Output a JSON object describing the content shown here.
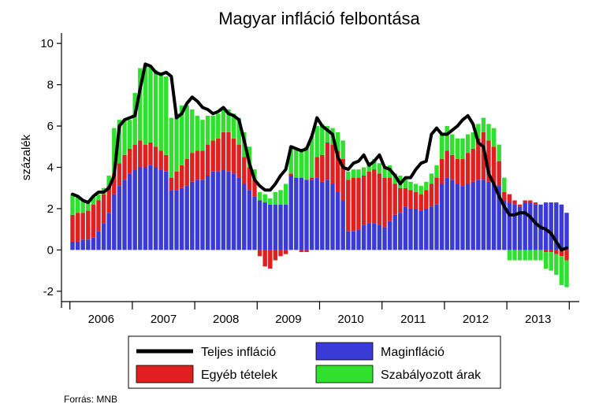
{
  "chart_data": {
    "type": "bar",
    "title": "Magyar infláció felbontása",
    "ylabel": "százalék",
    "ylim": [
      -2.5,
      10.5
    ],
    "yticks": [
      "10",
      "8",
      "6",
      "4",
      "2",
      "0",
      "-2"
    ],
    "years": [
      "2006",
      "2007",
      "2008",
      "2009",
      "2010",
      "2011",
      "2012",
      "2013"
    ],
    "periods_per_year": 12,
    "grid": false,
    "legend_position": "bottom",
    "series": [
      {
        "name": "Maginfláció",
        "color": "#3a3ad6",
        "values": [
          0.4,
          0.4,
          0.5,
          0.5,
          0.6,
          0.9,
          1.3,
          1.8,
          2.7,
          3.1,
          3.4,
          3.7,
          3.9,
          4.0,
          4.0,
          4.1,
          4.0,
          3.9,
          3.8,
          2.9,
          2.9,
          3.0,
          3.1,
          3.3,
          3.4,
          3.4,
          3.6,
          3.8,
          3.8,
          3.9,
          3.8,
          3.7,
          3.5,
          3.2,
          2.9,
          2.6,
          2.4,
          2.3,
          2.2,
          2.2,
          2.2,
          2.2,
          3.6,
          3.5,
          3.5,
          3.4,
          3.4,
          3.5,
          3.3,
          3.4,
          3.2,
          2.8,
          2.4,
          0.9,
          0.9,
          1.0,
          1.2,
          1.3,
          1.3,
          1.2,
          1.1,
          1.4,
          1.7,
          1.8,
          2.1,
          2.0,
          2.0,
          1.9,
          2.0,
          2.1,
          2.2,
          3.2,
          3.5,
          3.4,
          3.2,
          3.1,
          3.2,
          3.3,
          3.4,
          3.4,
          3.3,
          3.2,
          3.1,
          2.4,
          2.3,
          2.2,
          2.1,
          2.3,
          2.3,
          2.2,
          2.2,
          2.3,
          2.3,
          2.3,
          2.2,
          1.8
        ]
      },
      {
        "name": "Egyéb tételek",
        "color": "#e02020",
        "values": [
          1.3,
          1.4,
          1.3,
          1.4,
          1.6,
          1.5,
          1.4,
          1.3,
          1.0,
          1.1,
          1.2,
          1.2,
          1.2,
          1.3,
          1.1,
          1.1,
          1.0,
          0.9,
          0.8,
          0.6,
          0.9,
          1.1,
          1.3,
          1.4,
          1.4,
          1.4,
          1.5,
          1.5,
          1.6,
          1.8,
          1.9,
          1.7,
          1.6,
          1.3,
          1.1,
          0.8,
          -0.3,
          -0.8,
          -0.9,
          -0.5,
          -0.3,
          -0.2,
          0.1,
          0.0,
          -0.1,
          -0.1,
          0.1,
          1.0,
          1.3,
          1.8,
          1.9,
          2.0,
          2.0,
          2.5,
          2.6,
          2.5,
          2.4,
          2.5,
          2.6,
          2.5,
          2.4,
          2.1,
          1.5,
          1.2,
          0.9,
          0.9,
          0.8,
          0.8,
          0.9,
          1.1,
          1.3,
          1.2,
          1.3,
          1.2,
          1.2,
          1.3,
          1.5,
          1.6,
          2.0,
          2.3,
          2.0,
          1.8,
          1.2,
          0.4,
          0.4,
          0.2,
          0.1,
          0.1,
          0.1,
          0.1,
          0.0,
          -0.1,
          -0.1,
          -0.2,
          -0.3,
          -0.5
        ]
      },
      {
        "name": "Szabályozott árak",
        "color": "#2fe02f",
        "values": [
          1.0,
          0.8,
          0.6,
          0.4,
          0.4,
          0.3,
          0.3,
          0.5,
          2.2,
          2.1,
          1.7,
          1.4,
          2.5,
          3.5,
          3.9,
          3.7,
          3.7,
          3.8,
          3.8,
          2.9,
          2.8,
          2.9,
          2.6,
          2.1,
          1.7,
          1.5,
          1.4,
          1.2,
          1.2,
          1.1,
          1.1,
          1.2,
          1.3,
          1.2,
          1.0,
          0.5,
          0.4,
          0.4,
          0.3,
          0.6,
          0.7,
          1.0,
          1.3,
          1.4,
          1.4,
          1.6,
          2.0,
          1.5,
          1.5,
          0.8,
          0.8,
          0.9,
          0.9,
          0.4,
          0.4,
          0.4,
          0.4,
          0.4,
          0.5,
          0.5,
          0.5,
          0.6,
          0.5,
          0.6,
          0.5,
          0.4,
          0.4,
          0.4,
          0.4,
          0.5,
          0.6,
          1.2,
          1.2,
          1.0,
          1.0,
          1.0,
          0.9,
          0.8,
          0.7,
          0.7,
          0.8,
          0.9,
          0.8,
          0.7,
          -0.5,
          -0.5,
          -0.5,
          -0.5,
          -0.5,
          -0.5,
          -0.5,
          -0.8,
          -0.9,
          -1.0,
          -1.4,
          -1.3
        ]
      }
    ],
    "line": {
      "name": "Teljes infláció",
      "color": "#000000",
      "values": [
        2.7,
        2.6,
        2.4,
        2.3,
        2.6,
        2.8,
        2.8,
        3.0,
        3.6,
        6.0,
        6.3,
        6.4,
        6.5,
        7.8,
        9.0,
        8.9,
        8.6,
        8.5,
        8.6,
        8.4,
        6.4,
        6.6,
        7.1,
        7.4,
        7.2,
        6.9,
        6.8,
        6.6,
        6.7,
        6.9,
        6.6,
        6.5,
        6.3,
        5.3,
        4.2,
        3.4,
        3.1,
        2.9,
        2.9,
        3.2,
        3.6,
        3.9,
        5.0,
        4.9,
        4.8,
        4.9,
        5.5,
        6.4,
        6.0,
        5.8,
        5.6,
        4.5,
        4.0,
        3.9,
        4.2,
        4.3,
        4.6,
        4.1,
        4.3,
        4.6,
        4.0,
        3.9,
        3.6,
        3.2,
        3.5,
        3.5,
        3.9,
        4.2,
        4.3,
        5.6,
        5.9,
        5.6,
        5.6,
        5.8,
        6.0,
        6.3,
        6.5,
        6.1,
        5.2,
        5.0,
        3.7,
        3.2,
        2.6,
        2.1,
        1.7,
        1.7,
        1.8,
        1.8,
        1.6,
        1.3,
        1.1,
        1.0,
        0.8,
        0.4,
        0.0,
        0.1
      ]
    }
  },
  "legend": {
    "items": [
      {
        "label": "Teljes infláció",
        "kind": "line",
        "color": "#000000"
      },
      {
        "label": "Maginfláció",
        "kind": "box",
        "color": "#3a3ad6"
      },
      {
        "label": "Egyéb tételek",
        "kind": "box",
        "color": "#e02020"
      },
      {
        "label": "Szabályozott árak",
        "kind": "box",
        "color": "#2fe02f"
      }
    ]
  },
  "source": "Forrás: MNB"
}
